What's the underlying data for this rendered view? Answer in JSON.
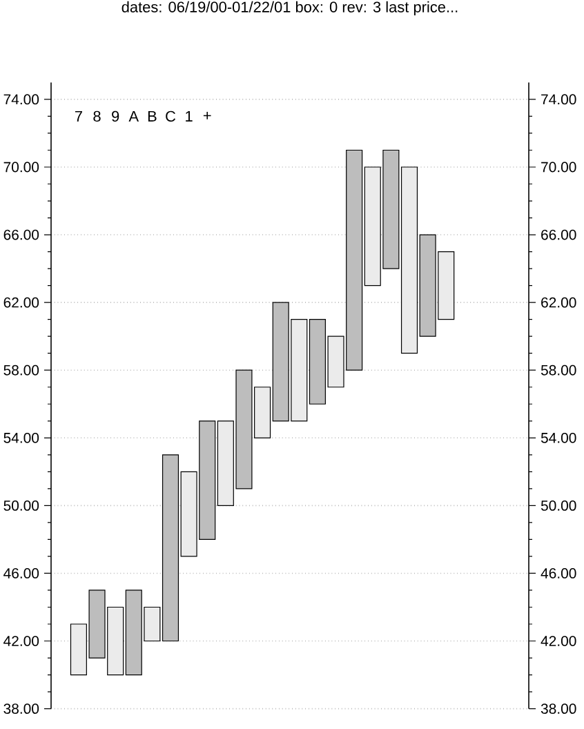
{
  "chart_data": {
    "type": "bar",
    "title": "dates: 06/19/00-01/22/01   box: 0   rev: 3   last price...",
    "categories": [
      null,
      null,
      null,
      null,
      null,
      null,
      null,
      null,
      null,
      null,
      null,
      null,
      null,
      null,
      null,
      null,
      null,
      null,
      null,
      null,
      null,
      null,
      null,
      null,
      null,
      null
    ],
    "series": [
      {
        "color": "#bdbdbd",
        "base": [
          null,
          null,
          41,
          null,
          40,
          null,
          42,
          null,
          48,
          null,
          51,
          null,
          55,
          null,
          56,
          null,
          58,
          null,
          64,
          null,
          60,
          null,
          null,
          null,
          null,
          null
        ],
        "values": [
          null,
          null,
          4,
          null,
          5,
          null,
          11,
          null,
          7,
          null,
          7,
          null,
          7,
          null,
          5,
          null,
          13,
          null,
          7,
          null,
          6,
          null,
          null,
          null,
          null,
          null
        ]
      },
      {
        "color": "#ebebeb",
        "base": [
          null,
          40,
          null,
          40,
          null,
          42,
          null,
          47,
          null,
          50,
          null,
          54,
          null,
          55,
          null,
          57,
          null,
          63,
          null,
          59,
          null,
          61,
          null,
          null,
          null,
          null
        ],
        "values": [
          null,
          3,
          null,
          4,
          null,
          2,
          null,
          5,
          null,
          5,
          null,
          3,
          null,
          6,
          null,
          3,
          null,
          7,
          null,
          11,
          null,
          4,
          null,
          null,
          null,
          null
        ]
      }
    ],
    "annotations": [
      "7",
      "8",
      "9",
      "A",
      "B",
      "C",
      "1",
      "+"
    ],
    "ylim": [
      38,
      75
    ],
    "yticks": [
      {
        "value": 38,
        "label": "38.00"
      },
      {
        "value": 42,
        "label": "42.00"
      },
      {
        "value": 46,
        "label": "46.00"
      },
      {
        "value": 50,
        "label": "50.00"
      },
      {
        "value": 54,
        "label": "54.00"
      },
      {
        "value": 58,
        "label": "58.00"
      },
      {
        "value": 62,
        "label": "62.00"
      },
      {
        "value": 66,
        "label": "66.00"
      },
      {
        "value": 70,
        "label": "70.00"
      },
      {
        "value": 74,
        "label": "74.00"
      }
    ],
    "y2lim": [
      38,
      75
    ],
    "y2ticks": [
      {
        "value": 38,
        "label": "38.00"
      },
      {
        "value": 42,
        "label": "42.00"
      },
      {
        "value": 46,
        "label": "46.00"
      },
      {
        "value": 50,
        "label": "50.00"
      },
      {
        "value": 54,
        "label": "54.00"
      },
      {
        "value": 58,
        "label": "58.00"
      },
      {
        "value": 62,
        "label": "62.00"
      },
      {
        "value": 66,
        "label": "66.00"
      },
      {
        "value": 70,
        "label": "70.00"
      },
      {
        "value": 74,
        "label": "74.00"
      }
    ],
    "grid": "y",
    "tick_labels": "y"
  }
}
